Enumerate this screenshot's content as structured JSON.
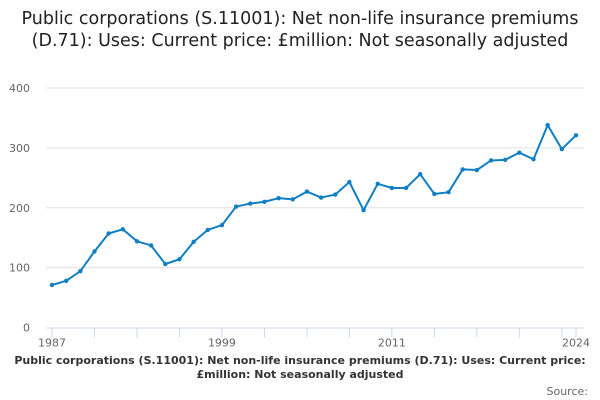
{
  "chart_data": {
    "type": "line",
    "title": "Public corporations (S.11001): Net non-life insurance premiums (D.71): Uses: Current price: £million: Not seasonally adjusted",
    "x": [
      1987,
      1988,
      1989,
      1990,
      1991,
      1992,
      1993,
      1994,
      1995,
      1996,
      1997,
      1998,
      1999,
      2000,
      2001,
      2002,
      2003,
      2004,
      2005,
      2006,
      2007,
      2008,
      2009,
      2010,
      2011,
      2012,
      2013,
      2014,
      2015,
      2016,
      2017,
      2018,
      2019,
      2020,
      2021,
      2022,
      2023,
      2024
    ],
    "series": [
      {
        "name": "Public corporations (S.11001): Net non-life insurance premiums (D.71): Uses: Current price: £million: Not seasonally adjusted",
        "values": [
          71,
          78,
          94,
          127,
          157,
          164,
          144,
          137,
          106,
          114,
          143,
          163,
          171,
          202,
          207,
          210,
          216,
          214,
          227,
          217,
          222,
          243,
          196,
          240,
          233,
          233,
          256,
          223,
          226,
          264,
          263,
          279,
          280,
          292,
          281,
          338,
          298,
          321
        ]
      }
    ],
    "xlim": [
      1987,
      2024
    ],
    "ylim": [
      0,
      400
    ],
    "yticks": [
      0,
      100,
      200,
      300,
      400
    ],
    "xticklabels": [
      "1987",
      "1999",
      "2011",
      "2024"
    ],
    "xlabel": "",
    "ylabel": "",
    "grid": true,
    "legend_placement": "bottom",
    "source_label": "Source:",
    "color": "#0f7fc4"
  }
}
